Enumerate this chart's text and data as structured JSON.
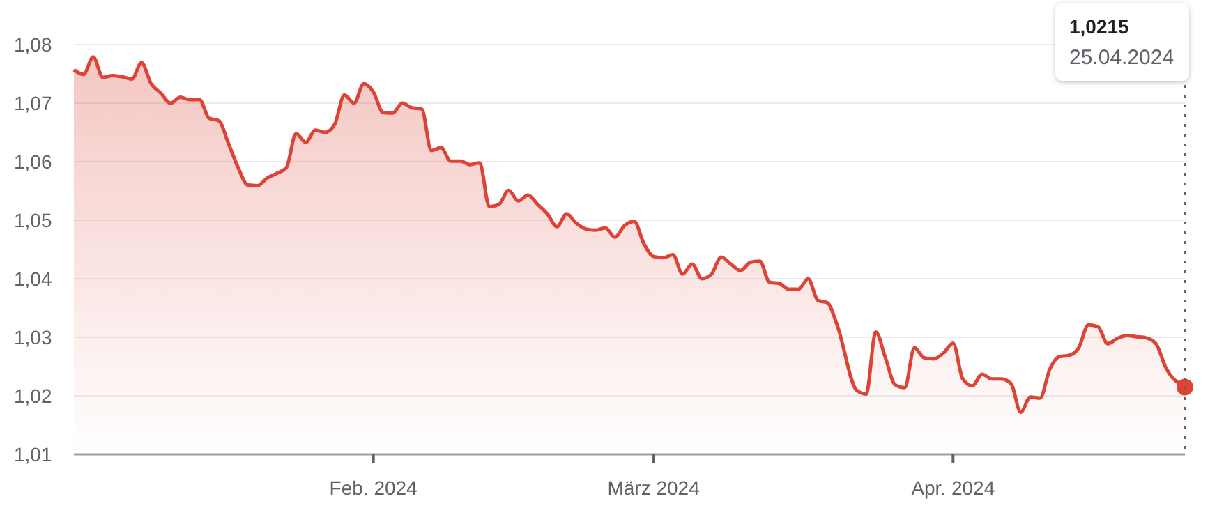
{
  "chart_data": {
    "type": "area",
    "xlim": [
      "2024-01-01",
      "2024-04-25"
    ],
    "ylim": [
      1.01,
      1.08
    ],
    "yticks": [
      {
        "value": 1.01,
        "label": "1,01"
      },
      {
        "value": 1.02,
        "label": "1,02"
      },
      {
        "value": 1.03,
        "label": "1,03"
      },
      {
        "value": 1.04,
        "label": "1,04"
      },
      {
        "value": 1.05,
        "label": "1,05"
      },
      {
        "value": 1.06,
        "label": "1,06"
      },
      {
        "value": 1.07,
        "label": "1,07"
      },
      {
        "value": 1.08,
        "label": "1,08"
      }
    ],
    "xticks": [
      {
        "value": "2024-02-01",
        "label": "Feb. 2024"
      },
      {
        "value": "2024-03-01",
        "label": "März 2024"
      },
      {
        "value": "2024-04-01",
        "label": "Apr. 2024"
      }
    ],
    "grid": "y",
    "marker": "none",
    "line_style": "solid",
    "series": [
      {
        "color": "#db4437",
        "x": [
          "2024-01-01",
          "2024-01-02",
          "2024-01-03",
          "2024-01-04",
          "2024-01-05",
          "2024-01-06",
          "2024-01-07",
          "2024-01-08",
          "2024-01-09",
          "2024-01-10",
          "2024-01-11",
          "2024-01-12",
          "2024-01-13",
          "2024-01-14",
          "2024-01-15",
          "2024-01-16",
          "2024-01-17",
          "2024-01-18",
          "2024-01-19",
          "2024-01-20",
          "2024-01-21",
          "2024-01-22",
          "2024-01-23",
          "2024-01-24",
          "2024-01-25",
          "2024-01-26",
          "2024-01-27",
          "2024-01-28",
          "2024-01-29",
          "2024-01-30",
          "2024-01-31",
          "2024-02-01",
          "2024-02-02",
          "2024-02-03",
          "2024-02-04",
          "2024-02-05",
          "2024-02-06",
          "2024-02-07",
          "2024-02-08",
          "2024-02-09",
          "2024-02-10",
          "2024-02-11",
          "2024-02-12",
          "2024-02-13",
          "2024-02-14",
          "2024-02-15",
          "2024-02-16",
          "2024-02-17",
          "2024-02-18",
          "2024-02-19",
          "2024-02-20",
          "2024-02-21",
          "2024-02-22",
          "2024-02-23",
          "2024-02-24",
          "2024-02-25",
          "2024-02-26",
          "2024-02-27",
          "2024-02-28",
          "2024-02-29",
          "2024-03-01",
          "2024-03-02",
          "2024-03-03",
          "2024-03-04",
          "2024-03-05",
          "2024-03-06",
          "2024-03-07",
          "2024-03-08",
          "2024-03-09",
          "2024-03-10",
          "2024-03-11",
          "2024-03-12",
          "2024-03-13",
          "2024-03-14",
          "2024-03-15",
          "2024-03-16",
          "2024-03-17",
          "2024-03-18",
          "2024-03-19",
          "2024-03-20",
          "2024-03-22",
          "2024-03-23",
          "2024-03-24",
          "2024-03-25",
          "2024-03-26",
          "2024-03-27",
          "2024-03-28",
          "2024-03-29",
          "2024-03-30",
          "2024-03-31",
          "2024-04-01",
          "2024-04-02",
          "2024-04-03",
          "2024-04-04",
          "2024-04-05",
          "2024-04-06",
          "2024-04-07",
          "2024-04-08",
          "2024-04-09",
          "2024-04-10",
          "2024-04-11",
          "2024-04-12",
          "2024-04-13",
          "2024-04-14",
          "2024-04-15",
          "2024-04-16",
          "2024-04-17",
          "2024-04-18",
          "2024-04-19",
          "2024-04-20",
          "2024-04-21",
          "2024-04-22",
          "2024-04-23",
          "2024-04-25"
        ],
        "values": [
          1.0757,
          1.0749,
          1.0779,
          1.0744,
          1.0747,
          1.0745,
          1.0741,
          1.0769,
          1.0733,
          1.0717,
          1.07,
          1.071,
          1.0706,
          1.0706,
          1.0674,
          1.067,
          1.0631,
          1.059,
          1.056,
          1.0559,
          1.0572,
          1.058,
          1.059,
          1.0648,
          1.0633,
          1.0654,
          1.065,
          1.0664,
          1.0714,
          1.07,
          1.0733,
          1.0719,
          1.0684,
          1.0683,
          1.07,
          1.0692,
          1.069,
          1.0619,
          1.0624,
          1.0601,
          1.0601,
          1.0595,
          1.0598,
          1.0523,
          1.0527,
          1.0551,
          1.0533,
          1.0543,
          1.0527,
          1.0511,
          1.0489,
          1.0511,
          1.0495,
          1.0485,
          1.0483,
          1.0487,
          1.0471,
          1.0491,
          1.0498,
          1.046,
          1.0438,
          1.0436,
          1.0441,
          1.0408,
          1.0425,
          1.04,
          1.0408,
          1.0437,
          1.0425,
          1.0414,
          1.0428,
          1.043,
          1.0394,
          1.0392,
          1.0382,
          1.0382,
          1.04,
          1.0363,
          1.0359,
          1.0321,
          1.021,
          1.0203,
          1.0309,
          1.0265,
          1.0219,
          1.0214,
          1.0282,
          1.0265,
          1.0263,
          1.0273,
          1.029,
          1.0229,
          1.0217,
          1.0237,
          1.0229,
          1.0229,
          1.0221,
          1.0172,
          1.0198,
          1.0196,
          1.0245,
          1.0267,
          1.0269,
          1.0282,
          1.0321,
          1.0318,
          1.0289,
          1.0298,
          1.0303,
          1.0301,
          1.0299,
          1.0289,
          1.0249,
          1.0215
        ]
      },
      {
        "type": "scatter",
        "color": "#db4437",
        "marker": "circle",
        "x": [
          "2024-04-25"
        ],
        "values": [
          1.0215
        ]
      }
    ],
    "ref_lines": [
      {
        "axis": "x",
        "value": "2024-04-25",
        "line_style": "dotted",
        "color": "#5f6368"
      }
    ],
    "annotations": [
      "1,0215",
      "25.04.2024"
    ]
  }
}
